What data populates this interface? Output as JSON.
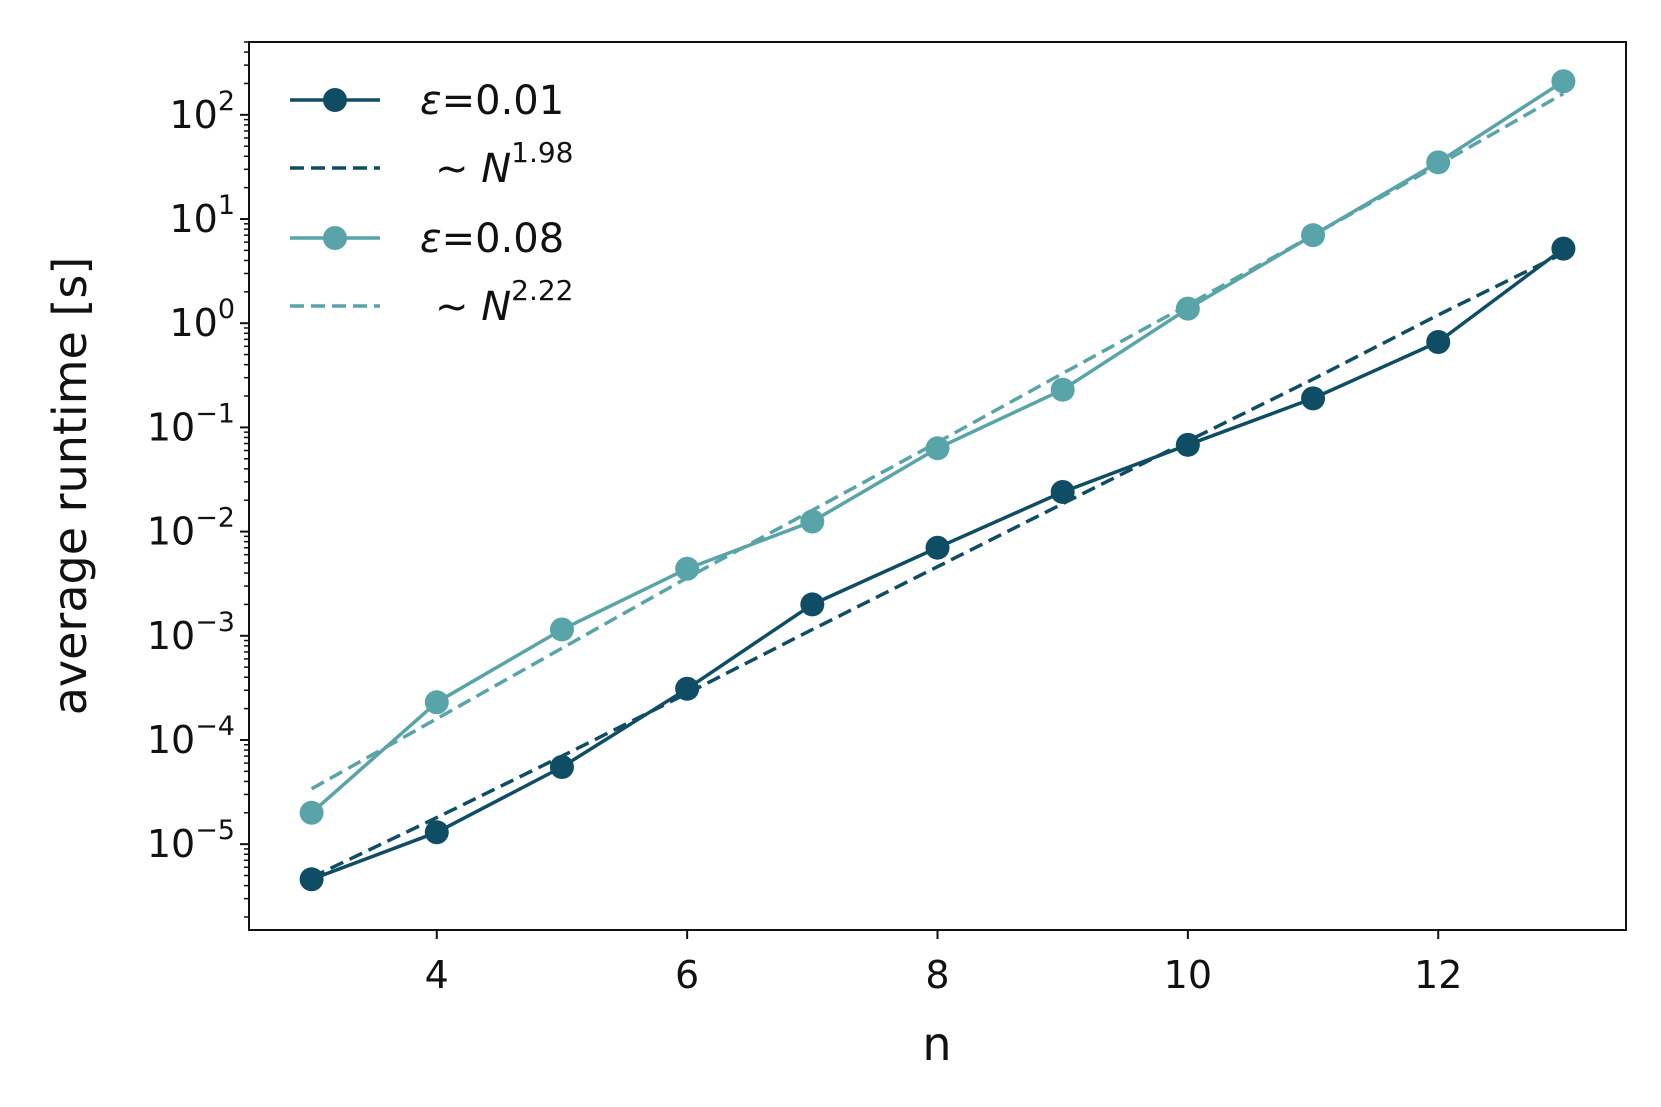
{
  "chart_data": {
    "type": "line",
    "xlabel": "n",
    "ylabel": "average runtime [s]",
    "yscale": "log",
    "xlim": [
      2.5,
      13.5
    ],
    "ylim": [
      1.5e-06,
      500
    ],
    "x_ticks": [
      4,
      6,
      8,
      10,
      12
    ],
    "x_tick_labels": [
      "4",
      "6",
      "8",
      "10",
      "12"
    ],
    "y_tick_exponents": [
      -5,
      -4,
      -3,
      -2,
      -1,
      0,
      1,
      2
    ],
    "y_tick_base": "10",
    "grid": false,
    "legend_position": "top-left",
    "x": [
      3,
      4,
      5,
      6,
      7,
      8,
      9,
      10,
      11,
      12,
      13
    ],
    "series": [
      {
        "name": "ε=0.01",
        "legend_symbol": "ε",
        "legend_value": "=0.01",
        "style": "solid-markers",
        "color": "#0e4d64",
        "values": [
          4.6e-06,
          1.3e-05,
          5.5e-05,
          0.00031,
          0.002,
          0.007,
          0.024,
          0.068,
          0.19,
          0.66,
          5.2
        ]
      },
      {
        "name": "~N^1.98",
        "legend_prefix": "~",
        "legend_base": "N",
        "legend_exponent": "1.98",
        "style": "dashed",
        "color": "#0e4d64",
        "values": [
          4.8e-06,
          1.8e-05,
          7e-05,
          0.00028,
          0.00115,
          0.0046,
          0.0185,
          0.074,
          0.29,
          1.2,
          4.7
        ]
      },
      {
        "name": "ε=0.08",
        "legend_symbol": "ε",
        "legend_value": "=0.08",
        "style": "solid-markers",
        "color": "#58a4a8",
        "values": [
          2e-05,
          0.00023,
          0.00115,
          0.0044,
          0.0125,
          0.063,
          0.23,
          1.38,
          7.0,
          35,
          210
        ]
      },
      {
        "name": "~N^2.22",
        "legend_prefix": "~",
        "legend_base": "N",
        "legend_exponent": "2.22",
        "style": "dashed",
        "color": "#58a4a8",
        "values": [
          3.4e-05,
          0.00016,
          0.00076,
          0.0036,
          0.016,
          0.072,
          0.33,
          1.5,
          7.0,
          33,
          160
        ]
      }
    ]
  }
}
